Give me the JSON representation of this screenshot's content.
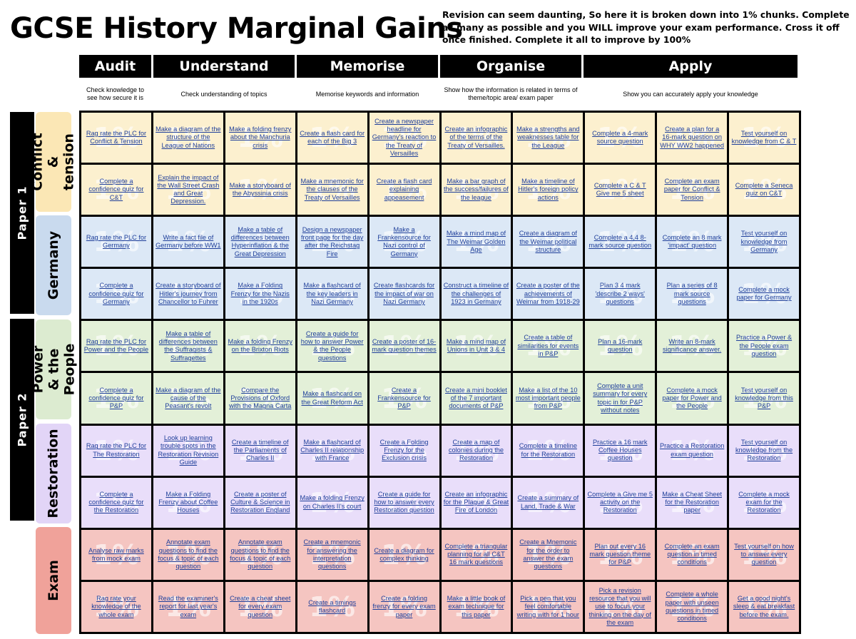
{
  "title": "GCSE History Marginal Gains",
  "intro": "Revision can seem daunting, So here it is broken down into 1% chunks. Complete as many as possible and you WILL improve your exam performance. Cross it off once finished. Complete it all to improve by 100%",
  "columns": [
    {
      "label": "Audit",
      "desc": "Check knowledge to see how secure it is"
    },
    {
      "label": "Understand",
      "desc": "Check understanding of topics"
    },
    {
      "label": "Memorise",
      "desc": "Memorise keywords and information"
    },
    {
      "label": "Organise",
      "desc": "Show how the information is related in terms of theme/topic area/ exam paper"
    },
    {
      "label": "Apply",
      "desc": "Show you can accurately apply your knowledge"
    }
  ],
  "papers": [
    "Paper 1",
    "Paper 2"
  ],
  "sections": [
    {
      "label": "Conflict & tension",
      "color": "#fbe7b5"
    },
    {
      "label": "Germany",
      "color": "#c9daee"
    },
    {
      "label": "Power & the People",
      "color": "#dcebd0"
    },
    {
      "label": "Restoration",
      "color": "#e2d5f7"
    },
    {
      "label": "Exam",
      "color": "#f0a29a"
    }
  ],
  "cell_colors": [
    "#fcf0cf",
    "#dce8f6",
    "#e3f0d8",
    "#e9defa",
    "#f5c5c1"
  ],
  "watermark": "1%",
  "rows": [
    [
      "Rag rate the PLC for Conflict & Tension",
      "Make a diagram of the structure of the League of Nations",
      "Make a folding frenzy about the Manchuria crisis",
      "Create a flash card for each of the Big 3",
      "Create a newspaper headline for Germany's reaction to the Treaty of Versailles",
      "Create an infographic of the terms of the Treaty of Versailles.",
      "Make a strengths and weaknesses table for the League",
      "Complete a 4-mark source question",
      "Create a plan for a 16-mark question on WHY WW2 happened",
      "Test yourself on knowledge from C & T"
    ],
    [
      "Complete a confidence quiz for C&T",
      "Explain the impact of the Wall Street Crash and Great Depression.",
      "Make a storyboard of the Abyssinia crisis",
      "Make a mnemonic for the clauses of the Treaty of Versailles",
      "Create a flash card explaining appeasement",
      "Make a bar graph of the success/failures of the league",
      "Make a timeline of Hitler's foreign policy actions",
      "Complete a C & T Give me 5 sheet",
      "Complete an exam paper for Conflict & Tension",
      "Complete a Seneca quiz on C&T"
    ],
    [
      "Rag rate the PLC for Germany",
      "Write a fact file of Germany before WW1",
      "Make a table of differences between Hyperinflation & the Great Depression",
      "Design a newspaper front page for the day after the Reichstag Fire",
      "Make a Frankensource for Nazi control of Germany",
      "Make a mind map of The Weimar Golden Age",
      "Create a diagram of the Weimar political structure",
      "Complete a 4,4 8-mark source question",
      "Complete an 8 mark 'impact' question",
      "Test yourself on knowledge from Germany"
    ],
    [
      "Complete a confidence quiz for Germany",
      "Create a storyboard of Hitler's journey from Chancellor to Fuhrer",
      "Make a Folding Frenzy for the Nazis in the 1920s",
      "Make a flashcard of the key leaders in Nazi Germany",
      "Create flashcards for the impact of war on Nazi Germany",
      "Construct a timeline of the challenges of 1923 in Germany",
      "Create a poster of the achievements of Weimar from 1918-29",
      "Plan 3 4 mark 'describe 2 ways' questions",
      "Plan a series of 8 mark source questions",
      "Complete a mock paper for Germany"
    ],
    [
      "Rag rate the PLC for Power and the People",
      "Make a table of differences between the Suffragists & Suffragettes",
      "Make a folding Frenzy on the Brixton Riots",
      "Create a guide for how to answer Power & the People questions",
      "Create a poster of 16-mark question themes",
      "Make a mind map of Unions in Unit 3 & 4",
      "Create a table of similarities for events in P&P",
      "Plan a 16-mark question",
      "Write an 8-mark significance answer.",
      "Practice a Power & the People exam question"
    ],
    [
      "Complete a confidence quiz for P&P",
      "Make a diagram of the cause of the Peasant's revolt",
      "Compare the Provisions of Oxford with the Magna Carta",
      "Make a flashcard on the Great Reform Act",
      "Create a Frankensource for P&P",
      "Create a mini booklet of the 7 important documents of P&P",
      "Make a list of the 10 most important people from P&P",
      "Complete a unit summary for every topic in for P&P without notes",
      "Complete a mock paper for Power and the People",
      "Test yourself on knowledge from this P&P"
    ],
    [
      "Rag rate the PLC for The Restoration",
      "Look up learning trouble spots in the Restoration Revision Guide",
      "Create a timeline of the Parliaments of Charles II",
      "Make a flashcard of Charles II relationship with France",
      "Create a Folding Frenzy for the Exclusion crisis",
      "Create a map of colonies during the Restoration",
      "Complete a timeline for the Restoration",
      "Practice a 16 mark Coffee Houses question",
      "Practice a Restoration exam question",
      "Test yourself on knowledge from the Restoration"
    ],
    [
      "Complete a confidence quiz for the Restoration",
      "Make a Folding Frenzy about Coffee Houses",
      "Create a poster of Culture & Science in Restoration England",
      "Make a folding Frenzy on Charles II's court",
      "Create a guide for how to answer every Restoration question",
      "Create an infographic for the Plague & Great Fire of London",
      "Create a summary of Land, Trade & War",
      "Complete a Give me 5 activity on the Restoration",
      "Make a Cheat Sheet for the Restoration paper",
      "Complete a mock exam for the Restoration"
    ],
    [
      "Analyse raw marks from mock exam",
      "Annotate exam questions to find the focus & topic of each question",
      "Annotate exam questions to find the focus & topic of each question",
      "Create a mnemonic for answering the interpretation questions",
      "Create a diagram for complex thinking",
      "Complete a triangular planning for all C&T 16 mark questions",
      "Create a Mnemonic for the order to answer the exam questions",
      "Plan out every 16 mark question theme for P&P",
      "Complete an exam question in timed conditions",
      "Test yourself on how to answer every question"
    ],
    [
      "Rag rate your knowledge of the whole exam",
      "Read the examiner's report for last year's exam",
      "Create a cheat sheet for every exam question",
      "Create a timings flashcard",
      "Create a folding frenzy for every exam paper",
      "Make a little book of exam technique for this paper",
      "Pick a pen that you feel comfortable writing with for 1 hour",
      "Pick a revision resource that you will use to focus your thinking on the day of the exam",
      "Complete a whole paper with unseen questions in timed conditions",
      "Get a good night's sleep & eat breakfast before the exam."
    ]
  ]
}
